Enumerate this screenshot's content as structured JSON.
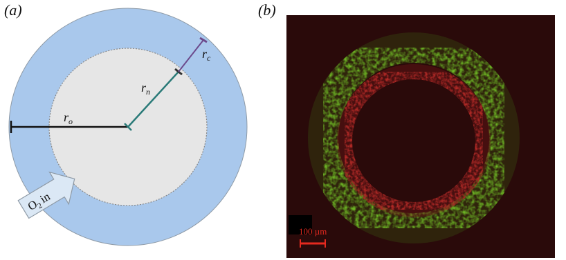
{
  "panels": {
    "a": {
      "label": "(a)",
      "radius_labels": {
        "r_o": {
          "base": "r",
          "sub": "o"
        },
        "r_n": {
          "base": "r",
          "sub": "n"
        },
        "r_c": {
          "base": "r",
          "sub": "c"
        }
      },
      "arrow_label": {
        "base": "O",
        "sub": "2",
        "tail": "in"
      },
      "colors": {
        "outer_ring": "#a9c8ec",
        "outer_ring_stroke": "#8e9aa6",
        "necrotic_core": "#e6e6e6",
        "r_o_line": "#111111",
        "r_n_line": "#2a7a78",
        "r_c_line": "#6c4a8c",
        "arrow_fill": "#dbe8f5"
      }
    },
    "b": {
      "label": "(b)",
      "scale_bar": {
        "text": "100 µm",
        "color": "#e5291f"
      },
      "colors": {
        "background": "#2a0a0a",
        "outer_cells": "#7ccf2a",
        "inner_cells": "#c9302c"
      }
    }
  }
}
